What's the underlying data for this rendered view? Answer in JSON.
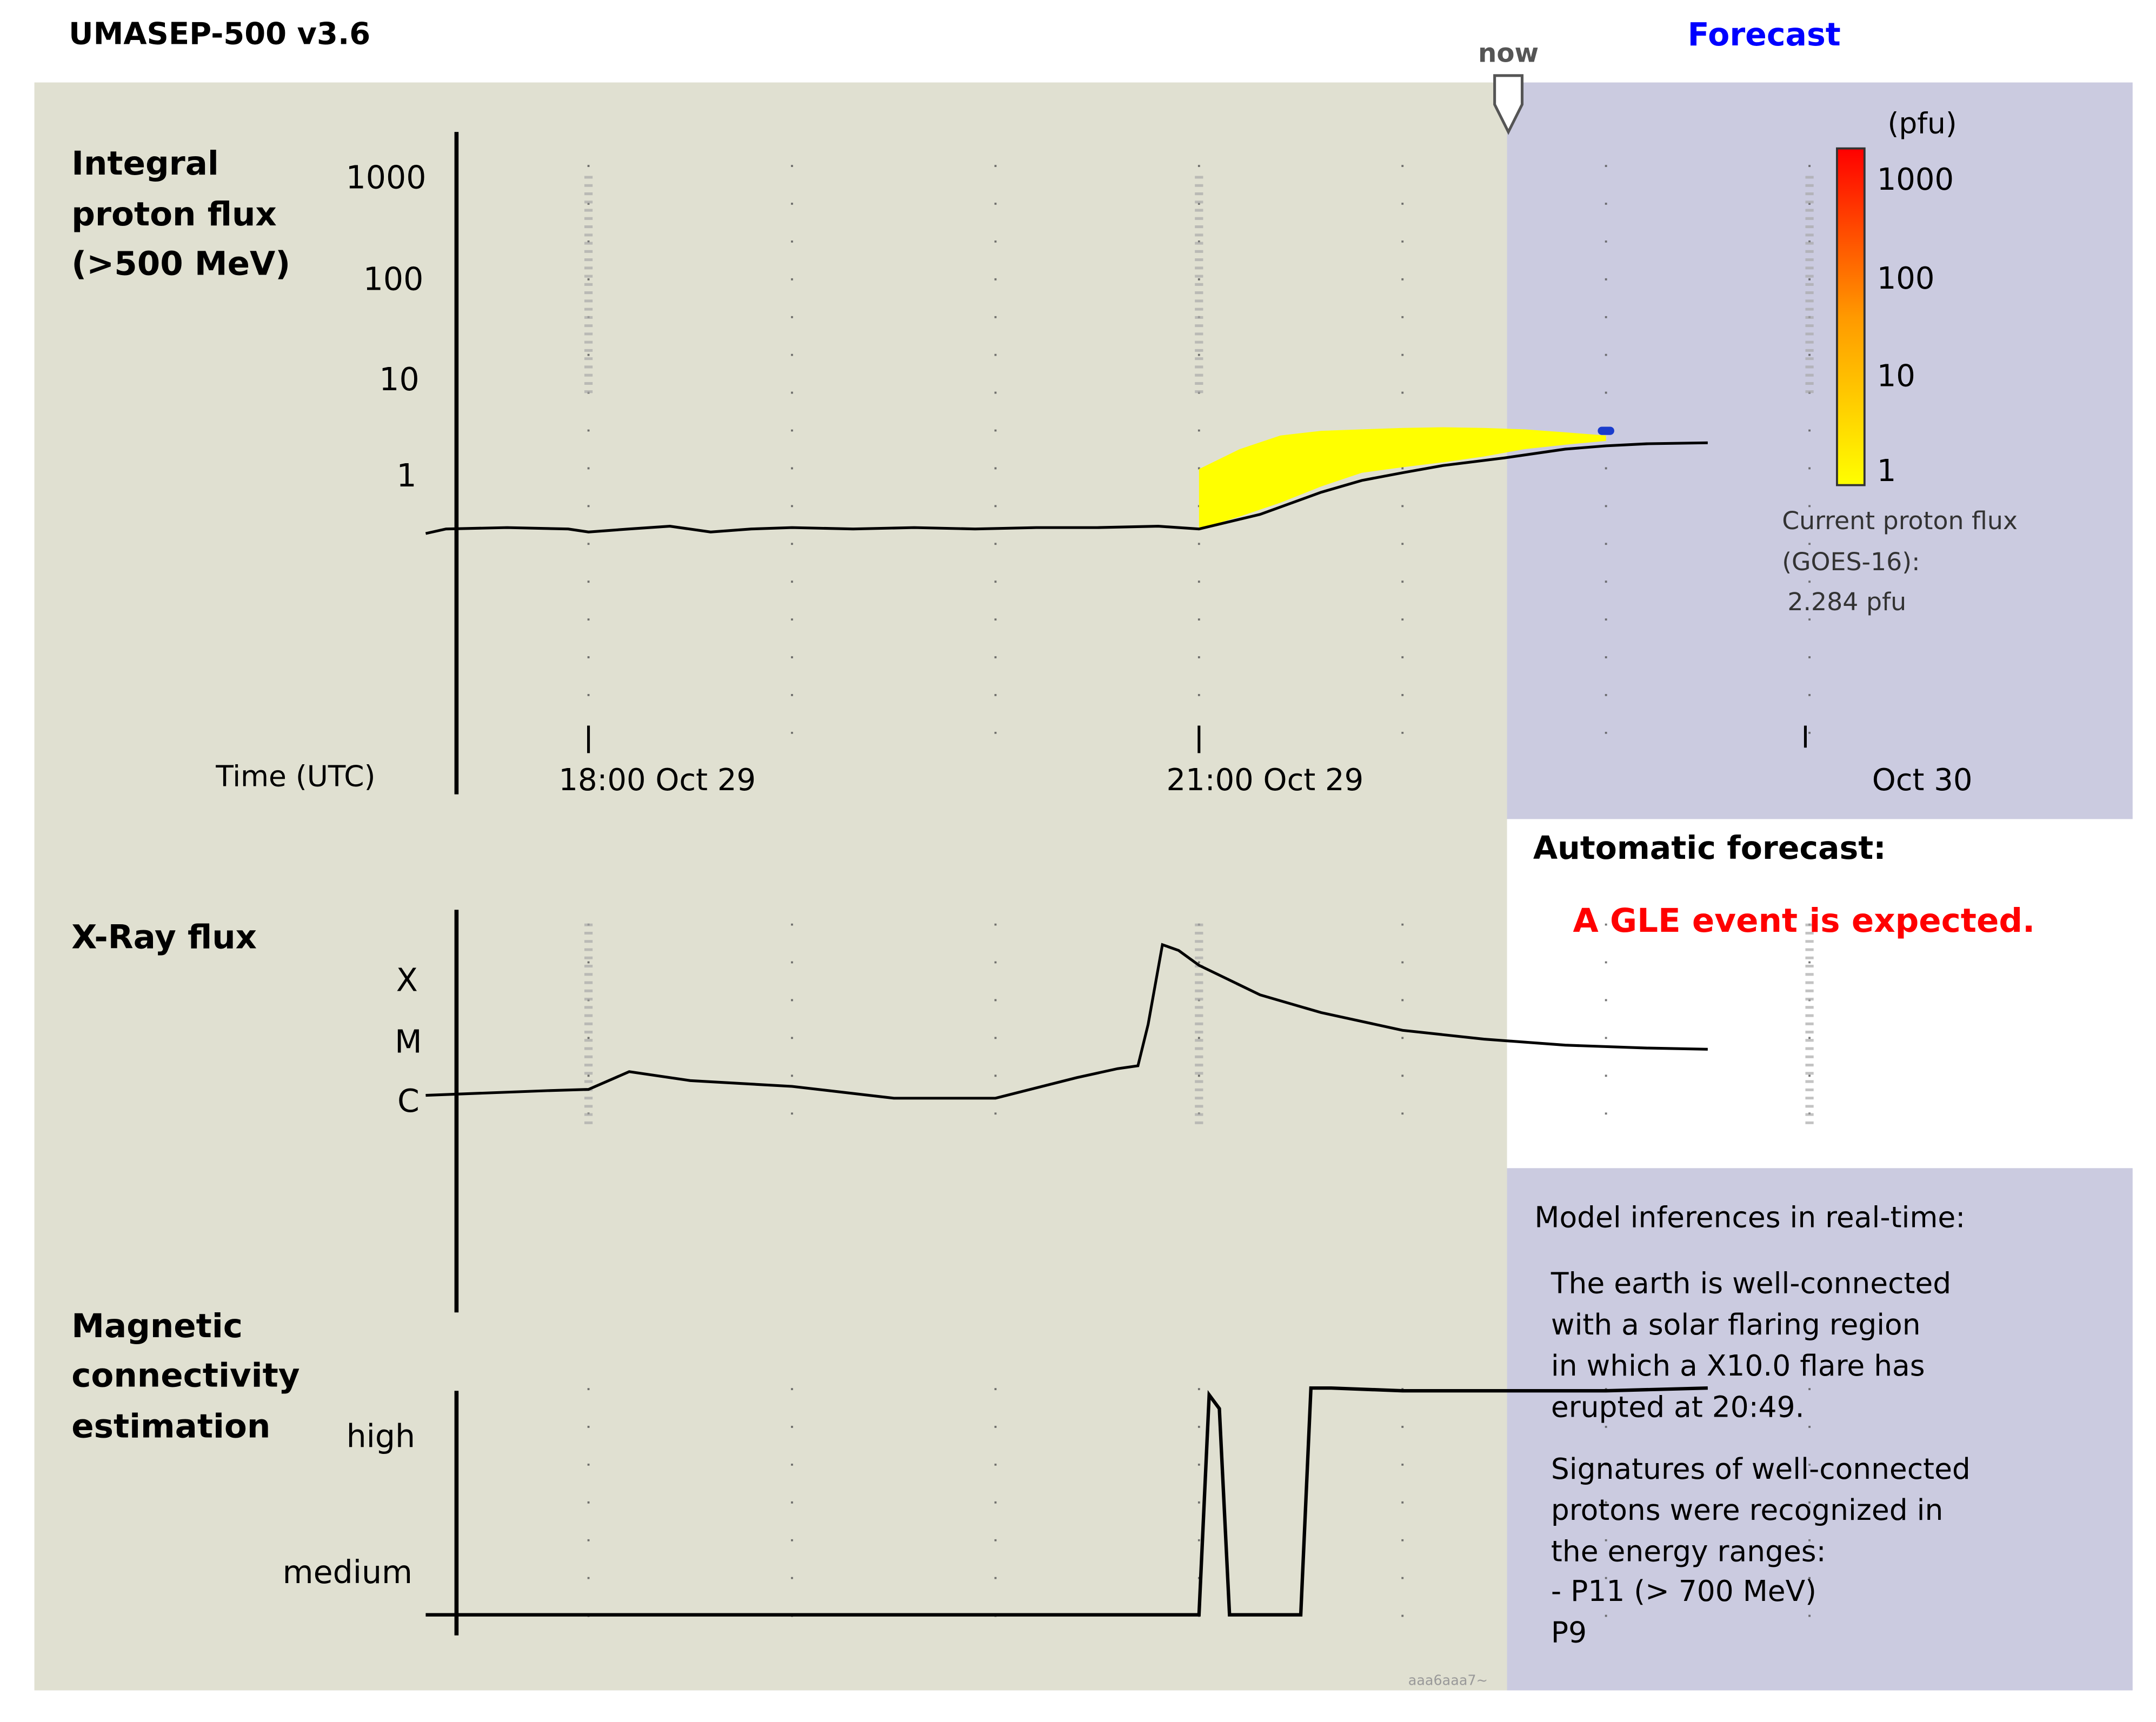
{
  "header": {
    "app_title": "UMASEP-500 v3.6",
    "now_label": "now",
    "forecast_label": "Forecast"
  },
  "proton_panel": {
    "title_lines": [
      "Integral",
      "proton flux",
      "(>500 MeV)"
    ],
    "y_ticks": [
      "1000",
      "100",
      "10",
      "1"
    ],
    "time_label": "Time (UTC)",
    "x_ticks": [
      "18:00 Oct 29",
      "21:00 Oct 29",
      "Oct 30"
    ]
  },
  "colorbar": {
    "unit": "(pfu)",
    "ticks": [
      "1000",
      "100",
      "10",
      "1"
    ],
    "colors": [
      "#ff0000",
      "#ffff00"
    ]
  },
  "current_flux": {
    "lines": [
      "Current proton flux",
      "(GOES-16):",
      "2.284 pfu"
    ]
  },
  "xray_panel": {
    "title": "X-Ray flux",
    "y_ticks": [
      "X",
      "M",
      "C"
    ]
  },
  "magnetic_panel": {
    "title_lines": [
      "Magnetic",
      "connectivity",
      "estimation"
    ],
    "y_ticks": [
      "high",
      "medium"
    ]
  },
  "auto_forecast": {
    "heading": "Automatic forecast:",
    "message": "A GLE event is expected.",
    "message_color": "#ff0000"
  },
  "inferences": {
    "heading": "Model inferences in real-time:",
    "para1": [
      "The earth is well-connected",
      "with a solar flaring region",
      "in which a X10.0 flare has",
      "erupted at 20:49."
    ],
    "para2": [
      "Signatures of well-connected",
      "protons were recognized in",
      "the energy ranges:",
      "- P11 (> 700 MeV)",
      "P9"
    ]
  },
  "watermark": "aaa6aaa7~",
  "colors": {
    "plot_bg": "#e0e0d1",
    "forecast_bg": "#cbcbe0",
    "forecast_title": "#0000ff",
    "forecast_band": "#ffff00",
    "forecast_marker": "#1a3ccc",
    "line": "#000000"
  },
  "chart_data": [
    {
      "type": "line",
      "title": "Integral proton flux (>500 MeV)",
      "xlabel": "Time (UTC)",
      "ylabel": "",
      "y_scale": "log",
      "ylim": [
        0.1,
        1000
      ],
      "x_ticks": [
        "18:00 Oct 29",
        "21:00 Oct 29",
        "Oct 30"
      ],
      "x_hours": [
        17.2,
        17.3,
        17.6,
        17.9,
        18.0,
        18.2,
        18.4,
        18.6,
        18.8,
        19.0,
        19.3,
        19.6,
        19.9,
        20.2,
        20.5,
        20.8,
        21.0,
        21.3,
        21.6,
        21.8,
        22.0,
        22.2,
        22.5,
        22.8,
        23.0,
        23.2,
        23.5
      ],
      "values": [
        0.27,
        0.3,
        0.31,
        0.3,
        0.28,
        0.3,
        0.32,
        0.28,
        0.3,
        0.31,
        0.3,
        0.31,
        0.3,
        0.31,
        0.31,
        0.32,
        0.3,
        0.42,
        0.7,
        0.92,
        1.1,
        1.3,
        1.55,
        1.9,
        2.05,
        2.15,
        2.2
      ],
      "forecast_band": {
        "x_hours": [
          21.0,
          21.2,
          21.4,
          21.6,
          21.8,
          22.0,
          22.2,
          22.4,
          22.6,
          22.8,
          23.0
        ],
        "upper": [
          1.2,
          1.9,
          2.6,
          2.9,
          3.0,
          3.1,
          3.15,
          3.1,
          3.0,
          2.8,
          2.6
        ],
        "lower": [
          0.3,
          0.4,
          0.55,
          0.8,
          1.1,
          1.25,
          1.4,
          1.6,
          1.9,
          2.1,
          2.3
        ]
      },
      "forecast_marker": {
        "x_hour": 23.0,
        "value": 2.9
      }
    },
    {
      "type": "line",
      "title": "X-Ray flux",
      "y_ticks": [
        "C",
        "M",
        "X"
      ],
      "note": "y in flare-class levels: 0 = C, 1 = M, 2 = X",
      "x_hours": [
        17.2,
        17.8,
        18.0,
        18.2,
        18.5,
        19.0,
        19.5,
        20.0,
        20.4,
        20.6,
        20.7,
        20.75,
        20.82,
        20.9,
        21.0,
        21.3,
        21.6,
        22.0,
        22.4,
        22.8,
        23.2,
        23.5
      ],
      "values": [
        0.0,
        0.08,
        0.1,
        0.4,
        0.25,
        0.15,
        -0.05,
        -0.05,
        0.3,
        0.45,
        0.5,
        1.2,
        2.55,
        2.45,
        2.2,
        1.7,
        1.4,
        1.1,
        0.95,
        0.85,
        0.8,
        0.78
      ]
    },
    {
      "type": "line",
      "title": "Magnetic connectivity estimation",
      "y_ticks": [
        "medium",
        "high"
      ],
      "note": "y levels: 0 = medium, 1 = high, -0.35 = below medium",
      "x_hours": [
        17.2,
        21.0,
        21.05,
        21.1,
        21.15,
        21.2,
        21.5,
        21.55,
        21.65,
        22.0,
        22.5,
        23.0,
        23.5
      ],
      "values": [
        -0.35,
        -0.35,
        1.25,
        1.15,
        -0.35,
        -0.35,
        -0.35,
        1.3,
        1.3,
        1.28,
        1.28,
        1.28,
        1.3
      ]
    }
  ]
}
